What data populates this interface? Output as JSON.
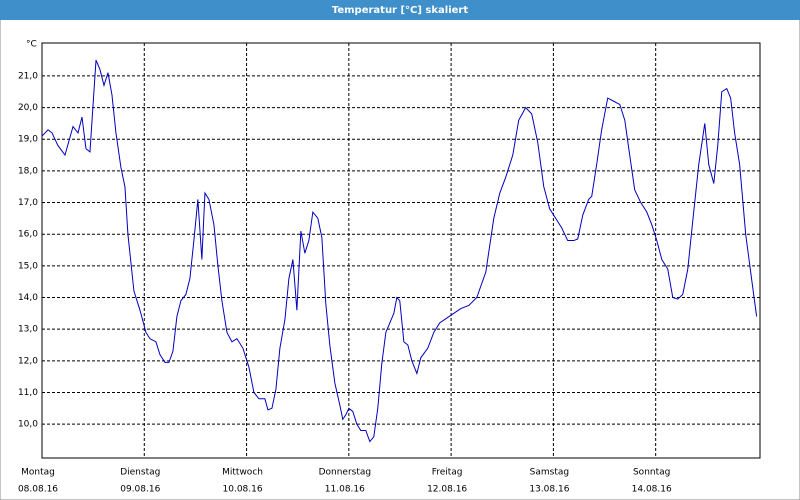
{
  "chart_data": {
    "type": "line",
    "title": "Temperatur [°C] skaliert",
    "y_unit": "°C",
    "color": "#0000c0",
    "grid": true,
    "xlim": [
      0,
      7.02
    ],
    "ylim": [
      8.93,
      22.04
    ],
    "xticks": [
      {
        "value": 0,
        "label": "Montag"
      },
      {
        "value": 1,
        "label": "Dienstag"
      },
      {
        "value": 2,
        "label": "Mittwoch"
      },
      {
        "value": 3,
        "label": "Donnerstag"
      },
      {
        "value": 4,
        "label": "Freitag"
      },
      {
        "value": 5,
        "label": "Samstag"
      },
      {
        "value": 6,
        "label": "Sonntag"
      }
    ],
    "xtick_dates": [
      "08.08.16",
      "09.08.16",
      "10.08.16",
      "11.08.16",
      "12.08.16",
      "13.08.16",
      "14.08.16"
    ],
    "yticks": [
      {
        "value": 10,
        "label": "10,0"
      },
      {
        "value": 11,
        "label": "11,0"
      },
      {
        "value": 12,
        "label": "12,0"
      },
      {
        "value": 13,
        "label": "13,0"
      },
      {
        "value": 14,
        "label": "14,0"
      },
      {
        "value": 15,
        "label": "15,0"
      },
      {
        "value": 16,
        "label": "16,0"
      },
      {
        "value": 17,
        "label": "17,0"
      },
      {
        "value": 18,
        "label": "18,0"
      },
      {
        "value": 19,
        "label": "19,0"
      },
      {
        "value": 20,
        "label": "20,0"
      },
      {
        "value": 21,
        "label": "21,0"
      }
    ],
    "x": [
      0,
      0.059,
      0.098,
      0.156,
      0.225,
      0.303,
      0.352,
      0.391,
      0.43,
      0.469,
      0.528,
      0.567,
      0.606,
      0.645,
      0.684,
      0.723,
      0.772,
      0.811,
      0.84,
      0.899,
      0.958,
      1.016,
      1.055,
      1.114,
      1.153,
      1.202,
      1.241,
      1.28,
      1.319,
      1.358,
      1.407,
      1.446,
      1.485,
      1.524,
      1.563,
      1.593,
      1.632,
      1.681,
      1.72,
      1.759,
      1.808,
      1.857,
      1.906,
      1.964,
      2.023,
      2.072,
      2.121,
      2.179,
      2.209,
      2.248,
      2.287,
      2.326,
      2.375,
      2.414,
      2.453,
      2.492,
      2.531,
      2.57,
      2.609,
      2.648,
      2.697,
      2.736,
      2.775,
      2.814,
      2.863,
      2.912,
      2.941,
      2.971,
      3.0,
      3.039,
      3.078,
      3.117,
      3.166,
      3.205,
      3.244,
      3.283,
      3.322,
      3.362,
      3.401,
      3.44,
      3.469,
      3.498,
      3.538,
      3.577,
      3.616,
      3.665,
      3.704,
      3.772,
      3.831,
      3.889,
      3.958,
      4.026,
      4.095,
      4.173,
      4.251,
      4.339,
      4.417,
      4.476,
      4.534,
      4.603,
      4.661,
      4.729,
      4.788,
      4.847,
      4.906,
      4.964,
      5.023,
      5.081,
      5.14,
      5.199,
      5.238,
      5.287,
      5.345,
      5.375,
      5.423,
      5.472,
      5.531,
      5.59,
      5.649,
      5.698,
      5.746,
      5.795,
      5.854,
      5.913,
      5.962,
      6.011,
      6.06,
      6.118,
      6.167,
      6.216,
      6.265,
      6.314,
      6.362,
      6.421,
      6.48,
      6.519,
      6.568,
      6.607,
      6.646,
      6.695,
      6.733,
      6.772,
      6.821,
      6.88,
      6.929,
      6.987
    ],
    "values": [
      19.1,
      19.3,
      19.2,
      18.8,
      18.5,
      19.4,
      19.2,
      19.7,
      18.7,
      18.6,
      21.5,
      21.2,
      20.7,
      21.1,
      20.4,
      19.2,
      18.1,
      17.5,
      16.0,
      14.2,
      13.6,
      12.9,
      12.7,
      12.6,
      12.2,
      11.95,
      11.95,
      12.3,
      13.4,
      13.9,
      14.1,
      14.6,
      15.8,
      17.1,
      15.2,
      17.3,
      17.1,
      16.3,
      15.0,
      13.9,
      12.9,
      12.6,
      12.7,
      12.4,
      11.8,
      11.0,
      10.8,
      10.8,
      10.45,
      10.5,
      11.1,
      12.4,
      13.3,
      14.6,
      15.2,
      13.6,
      16.1,
      15.4,
      15.8,
      16.7,
      16.5,
      15.9,
      13.8,
      12.5,
      11.3,
      10.6,
      10.15,
      10.3,
      10.5,
      10.4,
      10.0,
      9.8,
      9.8,
      9.45,
      9.6,
      10.5,
      11.9,
      12.9,
      13.2,
      13.5,
      14.0,
      13.9,
      12.6,
      12.5,
      12.0,
      11.6,
      12.1,
      12.4,
      12.9,
      13.2,
      13.35,
      13.5,
      13.65,
      13.75,
      14.0,
      14.8,
      16.5,
      17.3,
      17.8,
      18.5,
      19.6,
      20.0,
      19.8,
      18.9,
      17.5,
      16.8,
      16.5,
      16.2,
      15.8,
      15.8,
      15.85,
      16.6,
      17.1,
      17.2,
      18.2,
      19.3,
      20.3,
      20.2,
      20.1,
      19.6,
      18.5,
      17.4,
      17.0,
      16.7,
      16.3,
      15.8,
      15.2,
      14.9,
      14.0,
      13.95,
      14.1,
      14.9,
      16.4,
      18.2,
      19.5,
      18.2,
      17.6,
      18.8,
      20.5,
      20.6,
      20.3,
      19.2,
      18.2,
      16.0,
      14.8,
      13.4
    ]
  }
}
